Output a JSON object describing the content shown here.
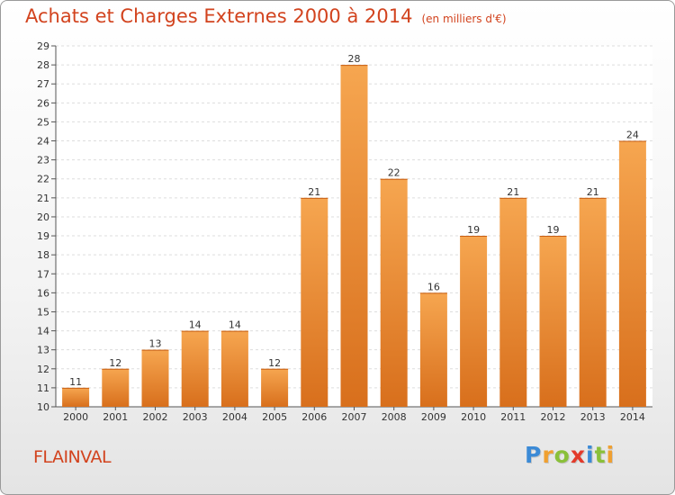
{
  "title": "Achats et Charges Externes 2000 à 2014",
  "unit_note": "(en milliers d'€)",
  "commune": "FLAINVAL",
  "logo": {
    "letters": [
      {
        "ch": "P",
        "color": "#3b8ad6"
      },
      {
        "ch": "r",
        "color": "#f0a030"
      },
      {
        "ch": "o",
        "color": "#8ac03a"
      },
      {
        "ch": "x",
        "color": "#e33a2a"
      },
      {
        "ch": "i",
        "color": "#3b8ad6"
      },
      {
        "ch": "t",
        "color": "#8ac03a"
      },
      {
        "ch": "i",
        "color": "#f0a030"
      }
    ]
  },
  "colors": {
    "title": "#d2431e",
    "bar_light": "#f6a650",
    "bar_dark": "#d86f1c",
    "grid": "#dddddd"
  },
  "chart_data": {
    "type": "bar",
    "title": "Achats et Charges Externes 2000 à 2014",
    "subtitle": "(en milliers d'€)",
    "xlabel": "",
    "ylabel": "",
    "categories": [
      "2000",
      "2001",
      "2002",
      "2003",
      "2004",
      "2005",
      "2006",
      "2007",
      "2008",
      "2009",
      "2010",
      "2011",
      "2012",
      "2013",
      "2014"
    ],
    "values": [
      11,
      12,
      13,
      14,
      14,
      12,
      21,
      28,
      22,
      16,
      19,
      21,
      19,
      21,
      24
    ],
    "data_labels": [
      "11",
      "12",
      "13",
      "14",
      "14",
      "12",
      "21",
      "28",
      "22",
      "16",
      "19",
      "21",
      "19",
      "21",
      "24"
    ],
    "ylim": [
      10,
      29
    ],
    "yticks": [
      10,
      11,
      12,
      13,
      14,
      15,
      16,
      17,
      18,
      19,
      20,
      21,
      22,
      23,
      24,
      25,
      26,
      27,
      28,
      29
    ],
    "grid": true,
    "legend": "none"
  }
}
